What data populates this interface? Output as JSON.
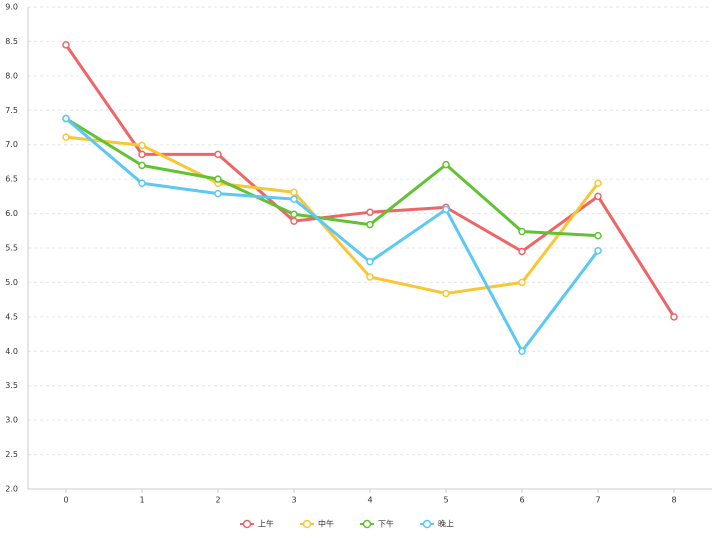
{
  "chart_data": {
    "type": "line",
    "x": [
      0,
      1,
      2,
      3,
      4,
      5,
      6,
      7,
      8
    ],
    "series": [
      {
        "name": "上午",
        "color": "#ef6567",
        "values": [
          8.45,
          6.86,
          6.86,
          5.89,
          6.02,
          6.09,
          5.45,
          6.25,
          4.5
        ]
      },
      {
        "name": "中午",
        "color": "#f9c634",
        "values": [
          7.11,
          6.99,
          6.44,
          6.31,
          5.08,
          4.84,
          5.0,
          6.44,
          null
        ]
      },
      {
        "name": "下午",
        "color": "#61c233",
        "values": [
          7.38,
          6.7,
          6.5,
          5.99,
          5.84,
          6.71,
          5.74,
          5.68,
          null
        ]
      },
      {
        "name": "晚上",
        "color": "#5bc8f5",
        "values": [
          7.38,
          6.44,
          6.29,
          6.21,
          5.3,
          6.06,
          4.0,
          5.46,
          null
        ]
      }
    ],
    "xlim": [
      -0.5,
      8.5
    ],
    "xticks": [
      0,
      1,
      2,
      3,
      4,
      5,
      6,
      7,
      8
    ],
    "ylim": [
      2,
      9
    ],
    "yticks": [
      {
        "value": 2,
        "label": "2.0"
      },
      2.5,
      {
        "value": 3,
        "label": "3.0"
      },
      3.5,
      {
        "value": 4,
        "label": "4.0"
      },
      4.5,
      {
        "value": 5,
        "label": "5.0"
      },
      5.5,
      {
        "value": 6,
        "label": "6.0"
      },
      6.5,
      {
        "value": 7,
        "label": "7.0"
      },
      7.5,
      {
        "value": 8,
        "label": "8.0"
      },
      8.5,
      {
        "value": 9,
        "label": "9.0"
      }
    ],
    "grid": true,
    "legend": "bottom"
  }
}
